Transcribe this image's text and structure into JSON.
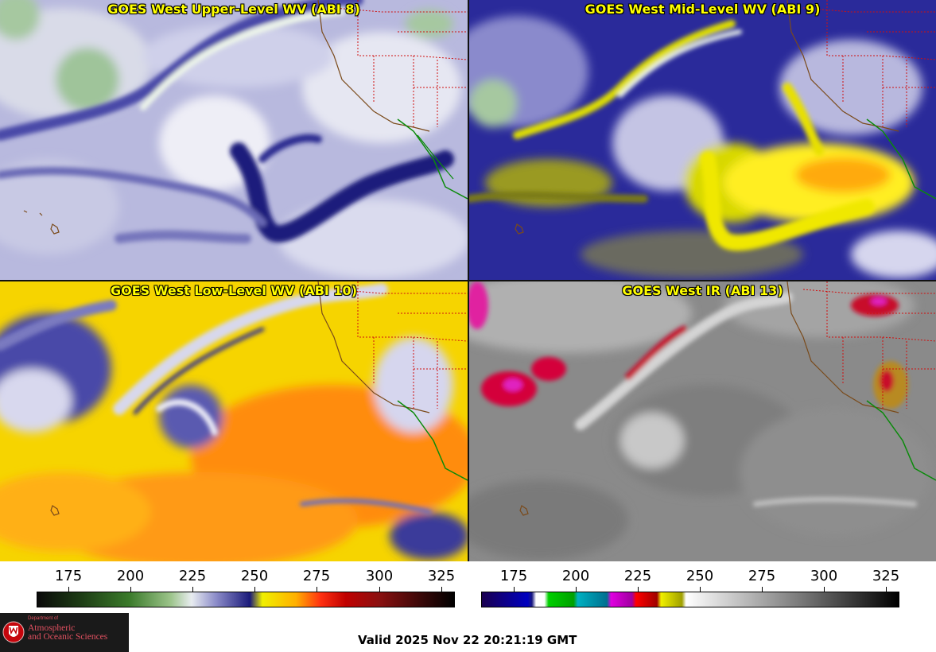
{
  "panels": [
    {
      "title": "GOES West Upper-Level WV (ABI 8)"
    },
    {
      "title": "GOES West Mid-Level WV (ABI 9)"
    },
    {
      "title": "GOES West Low-Level WV (ABI 10)"
    },
    {
      "title": "GOES West IR (ABI 13)"
    }
  ],
  "colorbars": {
    "wv": {
      "ticks": [
        "175",
        "200",
        "225",
        "250",
        "275",
        "300",
        "325"
      ]
    },
    "ir": {
      "ticks": [
        "175",
        "200",
        "225",
        "250",
        "275",
        "300",
        "325"
      ]
    }
  },
  "logo": {
    "line1": "Department of",
    "line2": "Atmospheric",
    "line3": "and Oceanic Sciences"
  },
  "valid_time": "Valid 2025 Nov 22 20:21:19 GMT"
}
